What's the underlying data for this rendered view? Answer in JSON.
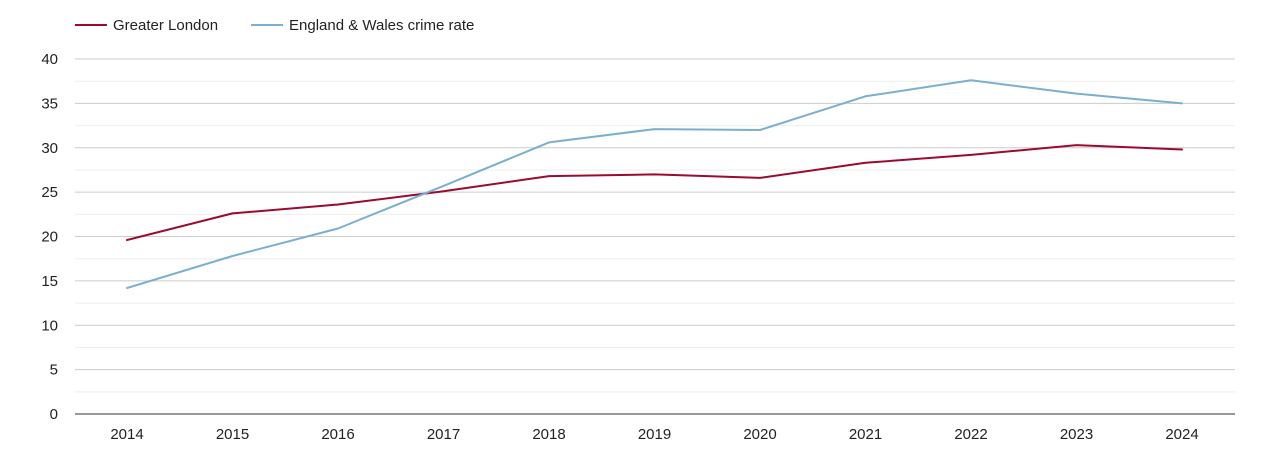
{
  "chart_data": {
    "type": "line",
    "title": "",
    "xlabel": "",
    "ylabel": "",
    "categories": [
      "2014",
      "2015",
      "2016",
      "2017",
      "2018",
      "2019",
      "2020",
      "2021",
      "2022",
      "2023",
      "2024"
    ],
    "ylim": [
      0,
      40
    ],
    "yticks": [
      "0",
      "5",
      "10",
      "15",
      "20",
      "25",
      "30",
      "35",
      "40"
    ],
    "grid": true,
    "legend_position": "top-left",
    "series": [
      {
        "name": "Greater London",
        "color": "#9b0a2f",
        "values": [
          19.6,
          22.6,
          23.6,
          25.1,
          26.8,
          27.0,
          26.6,
          28.3,
          29.2,
          30.3,
          29.8
        ]
      },
      {
        "name": "England & Wales crime rate",
        "color": "#7aafcf",
        "values": [
          14.2,
          17.8,
          20.9,
          25.7,
          30.6,
          32.1,
          32.0,
          35.8,
          37.6,
          36.1,
          35.0
        ]
      }
    ]
  }
}
